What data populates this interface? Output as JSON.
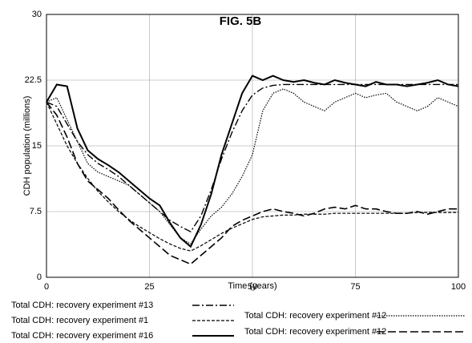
{
  "chart_data": {
    "type": "line",
    "title": "FIG. 5B",
    "x_label": "Time (years)",
    "y_label": "CDH population (millions)",
    "x": [
      0,
      2.5,
      5,
      7.5,
      10,
      12.5,
      15,
      17.5,
      20,
      22.5,
      25,
      27.5,
      30,
      32.5,
      35,
      37.5,
      40,
      42.5,
      45,
      47.5,
      50,
      52.5,
      55,
      57.5,
      60,
      62.5,
      65,
      67.5,
      70,
      72.5,
      75,
      77.5,
      80,
      82.5,
      85,
      87.5,
      90,
      92.5,
      95,
      97.5,
      100
    ],
    "series": [
      {
        "name": "Total CDH: recovery experiment #13",
        "color": "#000000",
        "values": [
          20,
          19.5,
          17.5,
          15.5,
          14,
          13,
          12.3,
          11.5,
          10.5,
          9.5,
          8.5,
          7.5,
          6.5,
          5.8,
          5.2,
          7,
          10,
          13.5,
          16.5,
          19,
          20.8,
          21.6,
          21.9,
          22,
          22,
          22,
          22,
          22,
          22,
          22,
          22,
          22,
          22,
          22,
          22,
          22,
          22,
          22,
          22,
          22,
          22
        ]
      },
      {
        "name": "Total CDH: recovery experiment #1",
        "color": "#000000",
        "values": [
          20,
          17.5,
          15,
          13,
          11.3,
          9.8,
          8.6,
          7.5,
          6.6,
          5.8,
          5.1,
          4.4,
          3.8,
          3.3,
          3,
          3.6,
          4.3,
          5,
          5.6,
          6.1,
          6.6,
          6.9,
          7,
          7.1,
          7.1,
          7.2,
          7.2,
          7.2,
          7.3,
          7.3,
          7.3,
          7.3,
          7.3,
          7.3,
          7.3,
          7.3,
          7.4,
          7.4,
          7.4,
          7.4,
          7.4
        ]
      },
      {
        "name": "Total CDH: recovery experiment #16",
        "color": "#000000",
        "values": [
          20,
          22,
          21.8,
          17,
          14.5,
          13.5,
          12.8,
          12,
          11,
          10,
          9,
          8.2,
          6.2,
          4.5,
          3.5,
          6,
          9.5,
          14,
          17.5,
          21,
          23,
          22.5,
          23,
          22.5,
          22.3,
          22.5,
          22.2,
          22,
          22.5,
          22.2,
          22,
          21.8,
          22.3,
          22,
          22,
          21.8,
          22,
          22.2,
          22.5,
          22,
          21.8
        ]
      },
      {
        "name": "Total CDH: recovery experiment #12",
        "color": "#000000",
        "values": [
          20,
          20.5,
          18,
          15.5,
          13,
          12,
          11.5,
          11,
          10.5,
          9.5,
          8.5,
          7.5,
          6,
          4.5,
          3.8,
          5.5,
          7,
          8,
          9.5,
          11.5,
          14,
          19,
          21,
          21.5,
          21,
          20,
          19.5,
          19,
          20,
          20.5,
          21,
          20.5,
          20.8,
          21,
          20,
          19.5,
          19,
          19.5,
          20.5,
          20,
          19.5
        ]
      },
      {
        "name": "Total CDH: recovery experiment #12",
        "color": "#000000",
        "values": [
          20,
          18.5,
          16,
          13,
          11,
          10,
          9,
          7.7,
          6.5,
          5.5,
          4.5,
          3.5,
          2.5,
          2,
          1.5,
          2.5,
          3.5,
          4.5,
          5.8,
          6.5,
          7,
          7.5,
          7.8,
          7.5,
          7.3,
          7,
          7.3,
          7.8,
          8,
          7.8,
          8.2,
          7.8,
          7.8,
          7.5,
          7.3,
          7.3,
          7.5,
          7.2,
          7.5,
          7.8,
          7.8
        ]
      }
    ],
    "xlim": [
      0,
      100
    ],
    "xticks": [
      0,
      25,
      50,
      75,
      100
    ],
    "ylim": [
      0,
      30
    ],
    "yticks": [
      0,
      7.5,
      15,
      22.5,
      30
    ],
    "grid": true
  }
}
